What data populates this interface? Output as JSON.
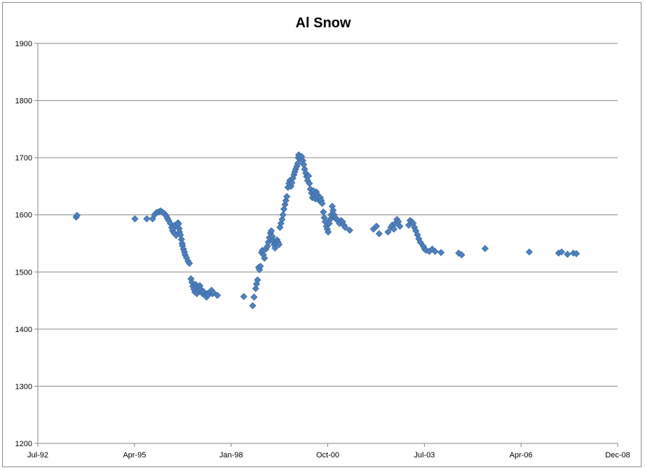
{
  "chart_data": {
    "type": "scatter",
    "title": "Al Snow",
    "xlabel": "",
    "ylabel": "",
    "x_ticks": [
      "Jul-92",
      "Apr-95",
      "Jan-98",
      "Oct-00",
      "Jul-03",
      "Apr-06",
      "Dec-08"
    ],
    "y_ticks": [
      "1200",
      "1300",
      "1400",
      "1500",
      "1600",
      "1700",
      "1800",
      "1900"
    ],
    "xlim": [
      "1992-07-01",
      "2008-12-01"
    ],
    "ylim": [
      1200,
      1900
    ],
    "grid": "horizontal major gridlines",
    "legend": "none",
    "marker": "diamond",
    "marker_color": "#4f81bd",
    "marker_edge_color": "#3a6aa6",
    "gridline_color": "#868686",
    "series": [
      {
        "points": [
          [
            "1993-08-01",
            1596
          ],
          [
            "1993-08-10",
            1599
          ],
          [
            "1995-04-01",
            1593
          ],
          [
            "1995-08-01",
            1593
          ],
          [
            "1995-10-01",
            1593
          ],
          [
            "1995-10-20",
            1600
          ],
          [
            "1995-11-10",
            1604
          ],
          [
            "1995-12-01",
            1605
          ],
          [
            "1995-12-20",
            1607
          ],
          [
            "1996-01-10",
            1605
          ],
          [
            "1996-02-01",
            1602
          ],
          [
            "1996-02-20",
            1598
          ],
          [
            "1996-03-01",
            1594
          ],
          [
            "1996-03-15",
            1590
          ],
          [
            "1996-04-01",
            1585
          ],
          [
            "1996-04-15",
            1578
          ],
          [
            "1996-04-25",
            1572
          ],
          [
            "1996-05-01",
            1576
          ],
          [
            "1996-05-10",
            1568
          ],
          [
            "1996-05-20",
            1582
          ],
          [
            "1996-06-01",
            1564
          ],
          [
            "1996-06-10",
            1580
          ],
          [
            "1996-06-20",
            1586
          ],
          [
            "1996-06-25",
            1584
          ],
          [
            "1996-07-01",
            1576
          ],
          [
            "1996-07-05",
            1570
          ],
          [
            "1996-07-15",
            1565
          ],
          [
            "1996-07-25",
            1557
          ],
          [
            "1996-08-01",
            1550
          ],
          [
            "1996-08-05",
            1546
          ],
          [
            "1996-08-15",
            1540
          ],
          [
            "1996-08-25",
            1535
          ],
          [
            "1996-09-01",
            1530
          ],
          [
            "1996-09-15",
            1525
          ],
          [
            "1996-10-01",
            1519
          ],
          [
            "1996-10-15",
            1515
          ],
          [
            "1996-11-01",
            1488
          ],
          [
            "1996-11-10",
            1482
          ],
          [
            "1996-11-20",
            1475
          ],
          [
            "1996-12-01",
            1470
          ],
          [
            "1996-12-10",
            1465
          ],
          [
            "1996-12-20",
            1478
          ],
          [
            "1997-01-01",
            1462
          ],
          [
            "1997-01-10",
            1474
          ],
          [
            "1997-01-20",
            1468
          ],
          [
            "1997-02-01",
            1476
          ],
          [
            "1997-02-10",
            1470
          ],
          [
            "1997-02-20",
            1465
          ],
          [
            "1997-03-01",
            1462
          ],
          [
            "1997-03-15",
            1465
          ],
          [
            "1997-04-01",
            1460
          ],
          [
            "1997-04-10",
            1456
          ],
          [
            "1997-04-20",
            1462
          ],
          [
            "1997-05-01",
            1460
          ],
          [
            "1997-05-15",
            1465
          ],
          [
            "1997-06-01",
            1468
          ],
          [
            "1997-06-10",
            1462
          ],
          [
            "1997-06-20",
            1464
          ],
          [
            "1997-08-01",
            1459
          ],
          [
            "1998-05-01",
            1457
          ],
          [
            "1998-08-01",
            1441
          ],
          [
            "1998-08-15",
            1456
          ],
          [
            "1998-09-01",
            1471
          ],
          [
            "1998-09-10",
            1479
          ],
          [
            "1998-09-20",
            1486
          ],
          [
            "1998-10-01",
            1508
          ],
          [
            "1998-10-10",
            1504
          ],
          [
            "1998-10-20",
            1510
          ],
          [
            "1998-11-01",
            1534
          ],
          [
            "1998-11-10",
            1538
          ],
          [
            "1998-11-20",
            1530
          ],
          [
            "1998-12-01",
            1524
          ],
          [
            "1998-12-15",
            1540
          ],
          [
            "1999-01-01",
            1545
          ],
          [
            "1999-01-10",
            1552
          ],
          [
            "1999-01-20",
            1560
          ],
          [
            "1999-02-01",
            1568
          ],
          [
            "1999-02-10",
            1572
          ],
          [
            "1999-02-20",
            1562
          ],
          [
            "1999-03-01",
            1555
          ],
          [
            "1999-03-10",
            1548
          ],
          [
            "1999-03-20",
            1542
          ],
          [
            "1999-04-01",
            1550
          ],
          [
            "1999-04-10",
            1556
          ],
          [
            "1999-04-20",
            1552
          ],
          [
            "1999-05-01",
            1548
          ],
          [
            "1999-05-10",
            1578
          ],
          [
            "1999-05-20",
            1585
          ],
          [
            "1999-06-01",
            1592
          ],
          [
            "1999-06-10",
            1600
          ],
          [
            "1999-06-20",
            1610
          ],
          [
            "1999-07-01",
            1618
          ],
          [
            "1999-07-10",
            1625
          ],
          [
            "1999-07-20",
            1632
          ],
          [
            "1999-08-01",
            1648
          ],
          [
            "1999-08-10",
            1655
          ],
          [
            "1999-08-20",
            1660
          ],
          [
            "1999-09-01",
            1650
          ],
          [
            "1999-09-10",
            1656
          ],
          [
            "1999-09-20",
            1664
          ],
          [
            "1999-10-01",
            1670
          ],
          [
            "1999-10-10",
            1675
          ],
          [
            "1999-10-20",
            1680
          ],
          [
            "1999-11-01",
            1685
          ],
          [
            "1999-11-10",
            1690
          ],
          [
            "1999-11-15",
            1700
          ],
          [
            "1999-11-20",
            1705
          ],
          [
            "1999-12-01",
            1703
          ],
          [
            "1999-12-10",
            1698
          ],
          [
            "1999-12-20",
            1702
          ],
          [
            "2000-01-01",
            1695
          ],
          [
            "2000-01-10",
            1688
          ],
          [
            "2000-01-20",
            1680
          ],
          [
            "2000-02-01",
            1673
          ],
          [
            "2000-02-10",
            1667
          ],
          [
            "2000-02-20",
            1660
          ],
          [
            "2000-03-01",
            1668
          ],
          [
            "2000-03-10",
            1655
          ],
          [
            "2000-03-20",
            1645
          ],
          [
            "2000-04-01",
            1638
          ],
          [
            "2000-04-10",
            1630
          ],
          [
            "2000-04-20",
            1642
          ],
          [
            "2000-05-01",
            1635
          ],
          [
            "2000-05-10",
            1628
          ],
          [
            "2000-05-20",
            1640
          ],
          [
            "2000-06-01",
            1635
          ],
          [
            "2000-06-10",
            1630
          ],
          [
            "2000-06-20",
            1625
          ],
          [
            "2000-07-01",
            1630
          ],
          [
            "2000-07-10",
            1625
          ],
          [
            "2000-07-20",
            1620
          ],
          [
            "2000-08-01",
            1605
          ],
          [
            "2000-08-10",
            1595
          ],
          [
            "2000-08-20",
            1588
          ],
          [
            "2000-09-01",
            1580
          ],
          [
            "2000-09-10",
            1575
          ],
          [
            "2000-09-20",
            1570
          ],
          [
            "2000-10-01",
            1585
          ],
          [
            "2000-10-10",
            1592
          ],
          [
            "2000-10-20",
            1600
          ],
          [
            "2000-11-01",
            1615
          ],
          [
            "2000-11-10",
            1608
          ],
          [
            "2000-11-20",
            1600
          ],
          [
            "2000-12-01",
            1595
          ],
          [
            "2000-12-15",
            1592
          ],
          [
            "2001-01-01",
            1590
          ],
          [
            "2001-01-15",
            1585
          ],
          [
            "2001-02-01",
            1590
          ],
          [
            "2001-02-15",
            1588
          ],
          [
            "2001-03-01",
            1582
          ],
          [
            "2001-03-15",
            1578
          ],
          [
            "2001-05-01",
            1573
          ],
          [
            "2002-01-01",
            1575
          ],
          [
            "2002-02-01",
            1580
          ],
          [
            "2002-03-01",
            1567
          ],
          [
            "2002-06-01",
            1570
          ],
          [
            "2002-07-01",
            1578
          ],
          [
            "2002-07-15",
            1582
          ],
          [
            "2002-08-01",
            1575
          ],
          [
            "2002-08-15",
            1585
          ],
          [
            "2002-09-01",
            1592
          ],
          [
            "2002-09-15",
            1588
          ],
          [
            "2002-10-01",
            1580
          ],
          [
            "2003-01-01",
            1582
          ],
          [
            "2003-01-15",
            1590
          ],
          [
            "2003-02-01",
            1588
          ],
          [
            "2003-02-15",
            1585
          ],
          [
            "2003-03-01",
            1578
          ],
          [
            "2003-03-15",
            1572
          ],
          [
            "2003-04-01",
            1565
          ],
          [
            "2003-04-15",
            1558
          ],
          [
            "2003-05-01",
            1552
          ],
          [
            "2003-06-01",
            1545
          ],
          [
            "2003-06-15",
            1540
          ],
          [
            "2003-07-01",
            1538
          ],
          [
            "2003-08-01",
            1536
          ],
          [
            "2003-09-01",
            1540
          ],
          [
            "2003-10-01",
            1536
          ],
          [
            "2003-12-01",
            1534
          ],
          [
            "2004-06-01",
            1533
          ],
          [
            "2004-07-01",
            1530
          ],
          [
            "2005-03-01",
            1541
          ],
          [
            "2006-06-01",
            1535
          ],
          [
            "2007-04-01",
            1533
          ],
          [
            "2007-05-01",
            1535
          ],
          [
            "2007-07-01",
            1531
          ],
          [
            "2007-09-01",
            1533
          ],
          [
            "2007-10-01",
            1532
          ]
        ]
      }
    ]
  }
}
